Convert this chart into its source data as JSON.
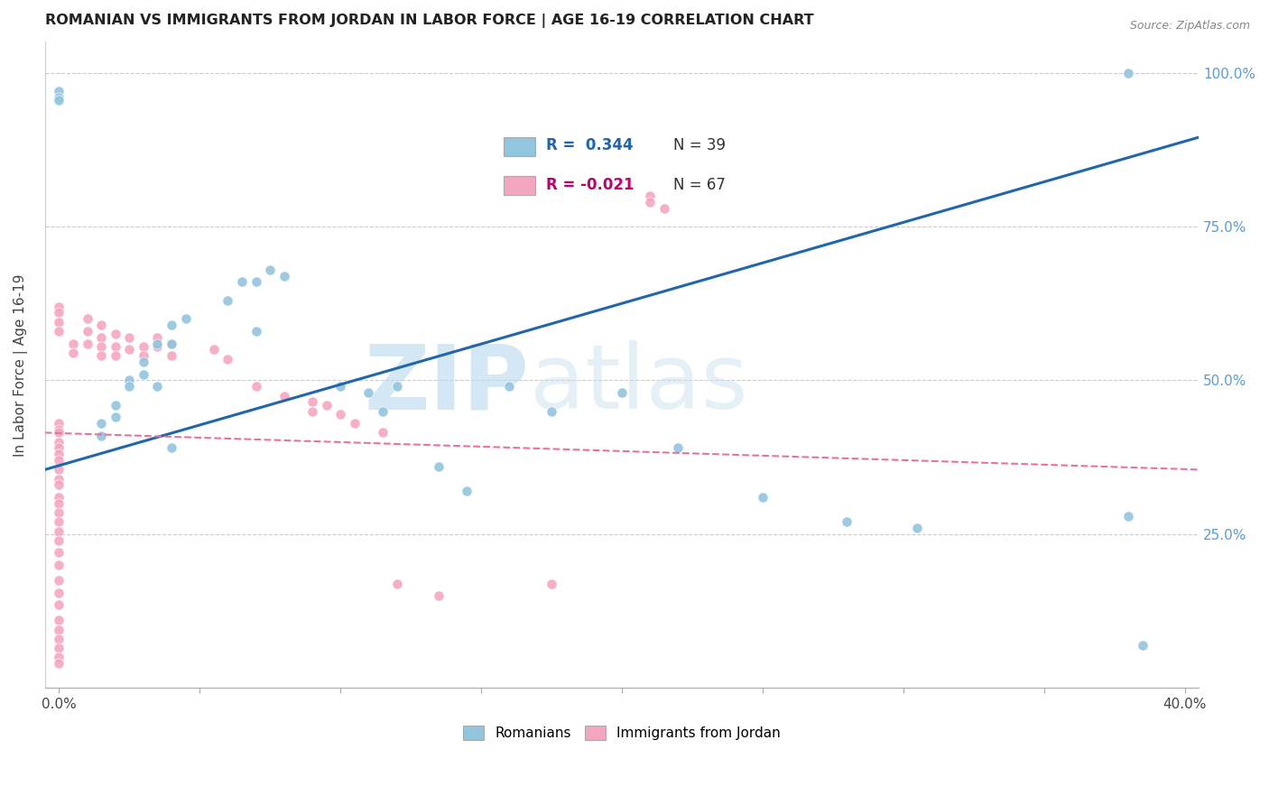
{
  "title": "ROMANIAN VS IMMIGRANTS FROM JORDAN IN LABOR FORCE | AGE 16-19 CORRELATION CHART",
  "source": "Source: ZipAtlas.com",
  "ylabel": "In Labor Force | Age 16-19",
  "xlim": [
    -0.005,
    0.405
  ],
  "ylim": [
    0.0,
    1.05
  ],
  "xtick_labels": [
    "0.0%",
    "",
    "",
    "",
    "",
    "",
    "",
    "",
    "40.0%"
  ],
  "xtick_values": [
    0.0,
    0.05,
    0.1,
    0.15,
    0.2,
    0.25,
    0.3,
    0.35,
    0.4
  ],
  "ytick_labels": [
    "25.0%",
    "50.0%",
    "75.0%",
    "100.0%"
  ],
  "ytick_values": [
    0.25,
    0.5,
    0.75,
    1.0
  ],
  "legend_r_blue": "R =  0.344",
  "legend_n_blue": "N = 39",
  "legend_r_pink": "R = -0.021",
  "legend_n_pink": "N = 67",
  "blue_color": "#92c5de",
  "pink_color": "#f4a6c0",
  "blue_line_color": "#2166ac",
  "pink_line_color": "#e8739a",
  "watermark_zip": "ZIP",
  "watermark_atlas": "atlas",
  "blue_scatter_x": [
    0.0,
    0.0,
    0.0,
    0.015,
    0.015,
    0.02,
    0.02,
    0.025,
    0.025,
    0.03,
    0.03,
    0.035,
    0.035,
    0.04,
    0.04,
    0.04,
    0.045,
    0.06,
    0.065,
    0.07,
    0.07,
    0.075,
    0.08,
    0.1,
    0.11,
    0.115,
    0.12,
    0.135,
    0.145,
    0.16,
    0.175,
    0.2,
    0.22,
    0.25,
    0.28,
    0.305,
    0.38,
    0.38,
    0.385
  ],
  "blue_scatter_y": [
    0.97,
    0.96,
    0.955,
    0.43,
    0.41,
    0.46,
    0.44,
    0.5,
    0.49,
    0.53,
    0.51,
    0.56,
    0.49,
    0.59,
    0.56,
    0.39,
    0.6,
    0.63,
    0.66,
    0.66,
    0.58,
    0.68,
    0.67,
    0.49,
    0.48,
    0.45,
    0.49,
    0.36,
    0.32,
    0.49,
    0.45,
    0.48,
    0.39,
    0.31,
    0.27,
    0.26,
    0.28,
    1.0,
    0.07
  ],
  "pink_scatter_x": [
    0.0,
    0.0,
    0.0,
    0.0,
    0.0,
    0.0,
    0.0,
    0.0,
    0.0,
    0.0,
    0.0,
    0.0,
    0.0,
    0.0,
    0.0,
    0.0,
    0.0,
    0.0,
    0.0,
    0.0,
    0.0,
    0.0,
    0.0,
    0.0,
    0.0,
    0.0,
    0.0,
    0.0,
    0.0,
    0.0,
    0.0,
    0.005,
    0.005,
    0.01,
    0.01,
    0.01,
    0.015,
    0.015,
    0.015,
    0.015,
    0.02,
    0.02,
    0.02,
    0.025,
    0.025,
    0.03,
    0.03,
    0.035,
    0.035,
    0.04,
    0.04,
    0.055,
    0.06,
    0.07,
    0.08,
    0.09,
    0.09,
    0.095,
    0.1,
    0.105,
    0.115,
    0.12,
    0.135,
    0.175,
    0.21,
    0.21,
    0.215
  ],
  "pink_scatter_y": [
    0.43,
    0.42,
    0.415,
    0.4,
    0.39,
    0.38,
    0.37,
    0.355,
    0.34,
    0.33,
    0.31,
    0.3,
    0.285,
    0.27,
    0.255,
    0.24,
    0.22,
    0.2,
    0.175,
    0.155,
    0.135,
    0.11,
    0.095,
    0.08,
    0.065,
    0.05,
    0.04,
    0.62,
    0.61,
    0.595,
    0.58,
    0.56,
    0.545,
    0.6,
    0.58,
    0.56,
    0.59,
    0.57,
    0.555,
    0.54,
    0.575,
    0.555,
    0.54,
    0.57,
    0.55,
    0.555,
    0.54,
    0.57,
    0.555,
    0.56,
    0.54,
    0.55,
    0.535,
    0.49,
    0.475,
    0.465,
    0.45,
    0.46,
    0.445,
    0.43,
    0.415,
    0.17,
    0.15,
    0.17,
    0.8,
    0.79,
    0.78
  ],
  "blue_trend_x": [
    -0.005,
    0.405
  ],
  "blue_trend_y": [
    0.355,
    0.895
  ],
  "pink_trend_x": [
    -0.005,
    0.405
  ],
  "pink_trend_y": [
    0.415,
    0.355
  ]
}
